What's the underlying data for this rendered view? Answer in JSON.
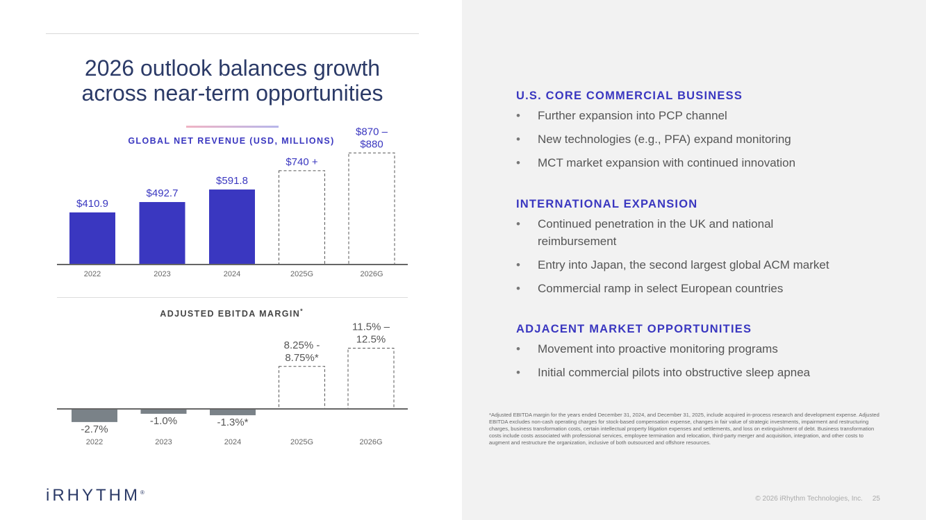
{
  "title": {
    "line1": "2026 outlook balances growth",
    "line2": "across near-term opportunities"
  },
  "revenue_chart_title": "GLOBAL NET REVENUE (USD, MILLIONS)",
  "ebitda_chart_title": "ADJUSTED EBITDA MARGIN",
  "ebitda_chart_title_mark": "*",
  "colors": {
    "revenue_bar": "#3a37c0",
    "ebitda_bar": "#7a8288",
    "guidance_outline": "#555555",
    "heading": "#3a37c0",
    "title": "#2b3a67"
  },
  "chart_data": [
    {
      "type": "bar",
      "title": "GLOBAL NET REVENUE (USD, MILLIONS)",
      "categories": [
        "2022",
        "2023",
        "2024",
        "2025G",
        "2026G"
      ],
      "values": [
        410.9,
        492.7,
        591.8,
        740,
        880
      ],
      "guidance": [
        false,
        false,
        false,
        true,
        true
      ],
      "labels": [
        [
          "$410.9"
        ],
        [
          "$492.7"
        ],
        [
          "$591.8"
        ],
        [
          "$740 +"
        ],
        [
          "$870 –",
          "$880"
        ]
      ],
      "ylim": [
        0,
        1150
      ],
      "grid": false,
      "legend": "none"
    },
    {
      "type": "bar",
      "title": "ADJUSTED EBITDA MARGIN*",
      "categories": [
        "2022",
        "2023",
        "2024",
        "2025G",
        "2026G"
      ],
      "values": [
        -2.7,
        -1.0,
        -1.3,
        8.75,
        12.5
      ],
      "guidance": [
        false,
        false,
        false,
        true,
        true
      ],
      "labels": [
        [
          "-2.7%"
        ],
        [
          "-1.0%"
        ],
        [
          "-1.3%*"
        ],
        [
          "8.25% -",
          "8.75%*"
        ],
        [
          "11.5% –",
          "12.5%"
        ]
      ],
      "ylim": [
        -4,
        18
      ],
      "grid": false,
      "legend": "none"
    }
  ],
  "sections": [
    {
      "heading": "U.S. CORE COMMERCIAL BUSINESS",
      "items": [
        "Further expansion into PCP channel",
        "New technologies (e.g., PFA) expand monitoring",
        "MCT market expansion with continued innovation"
      ]
    },
    {
      "heading": "INTERNATIONAL EXPANSION",
      "items": [
        "Continued penetration in the UK and national reimbursement",
        "Entry into Japan, the second largest global ACM market",
        "Commercial ramp in select European countries"
      ]
    },
    {
      "heading": "ADJACENT MARKET OPPORTUNITIES",
      "items": [
        "Movement into proactive monitoring programs",
        "Initial commercial pilots into obstructive sleep apnea"
      ]
    }
  ],
  "bullet_glyph": "•",
  "footnote": "*Adjusted EBITDA margin for the years ended December 31, 2024, and December 31, 2025, include acquired in-process research and development expense. Adjusted EBITDA excludes non-cash operating charges for stock-based compensation expense, changes in fair value of strategic investments, impairment and restructuring charges, business transformation costs, certain intellectual property litigation expenses and settlements, and loss on extinguishment of debt. Business transformation costs include costs associated with professional services, employee termination and relocation, third-party merger and acquisition, integration, and other costs to augment and restructure the organization, inclusive of both outsourced and offshore resources.",
  "logo_text": "iRHYTHM",
  "logo_mark": "®",
  "copyright": "© 2026 iRhythm Technologies, Inc.",
  "page_number": "25"
}
